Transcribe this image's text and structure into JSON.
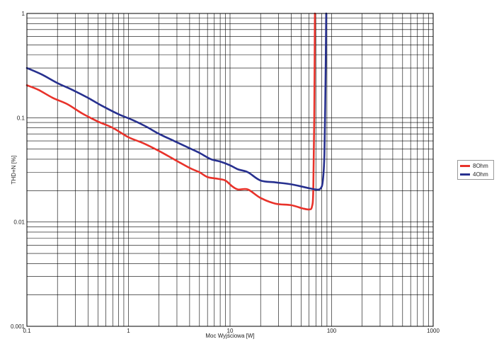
{
  "chart_data": {
    "type": "line",
    "xlabel": "Moc Wyjściowa [W]",
    "ylabel": "THD+N [%]",
    "x_scale": "log",
    "y_scale": "log",
    "xlim": [
      0.1,
      1000
    ],
    "ylim": [
      0.001,
      1
    ],
    "x_ticks": [
      "0.1",
      "1",
      "10",
      "100",
      "1000"
    ],
    "y_ticks": [
      "0.001",
      "0.01",
      "0.1",
      "1"
    ],
    "grid": true,
    "legend_position": "right",
    "series": [
      {
        "name": "8Ohm",
        "color": "#e8322a",
        "x": [
          0.1,
          0.13,
          0.18,
          0.25,
          0.35,
          0.5,
          0.7,
          1.0,
          1.4,
          2.0,
          2.8,
          4.0,
          5.0,
          6.0,
          7.5,
          9.0,
          10.5,
          12.0,
          15.0,
          20.0,
          28.0,
          40.0,
          52.0,
          60.0,
          64.0,
          66.0,
          67.5,
          68.5
        ],
        "y": [
          0.205,
          0.185,
          0.155,
          0.135,
          0.11,
          0.092,
          0.08,
          0.065,
          0.057,
          0.048,
          0.04,
          0.033,
          0.03,
          0.027,
          0.026,
          0.025,
          0.022,
          0.0205,
          0.0205,
          0.017,
          0.015,
          0.0145,
          0.0135,
          0.0132,
          0.014,
          0.02,
          0.1,
          1.0
        ]
      },
      {
        "name": "4Ohm",
        "color": "#27308f",
        "x": [
          0.1,
          0.14,
          0.2,
          0.28,
          0.4,
          0.55,
          0.8,
          1.1,
          1.5,
          2.0,
          2.8,
          4.0,
          5.0,
          6.5,
          8.0,
          10.0,
          12.0,
          15.0,
          20.0,
          28.0,
          40.0,
          55.0,
          70.0,
          78.0,
          82.0,
          85.0,
          87.0,
          88.5
        ],
        "y": [
          0.3,
          0.26,
          0.215,
          0.185,
          0.155,
          0.13,
          0.108,
          0.095,
          0.082,
          0.07,
          0.06,
          0.051,
          0.046,
          0.04,
          0.038,
          0.035,
          0.032,
          0.03,
          0.025,
          0.024,
          0.023,
          0.0215,
          0.0205,
          0.021,
          0.025,
          0.045,
          0.2,
          1.0
        ]
      }
    ]
  }
}
